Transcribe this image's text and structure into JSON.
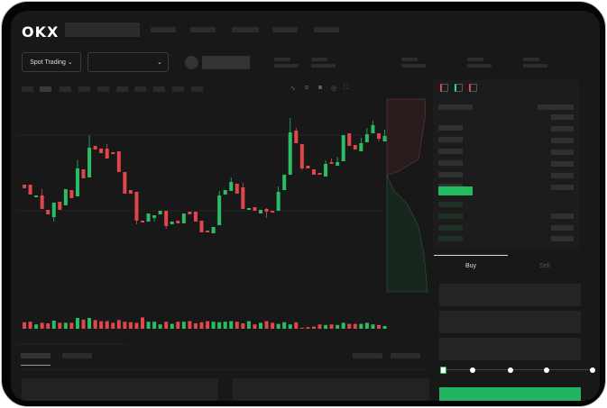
{
  "header": {
    "logo": "OKX"
  },
  "market": {
    "mode_button": "Spot Trading",
    "chevron": "⌄"
  },
  "order_form": {
    "tabs": [
      {
        "label": "Buy",
        "active": true
      },
      {
        "label": "Sell",
        "active": false
      }
    ],
    "slider_percent": 0
  },
  "colors": {
    "up": "#2bbd63",
    "down": "#e0464a",
    "background": "#181818",
    "accent": "#23b25f"
  },
  "toolbar_icons": [
    "indicator-icon",
    "line-chart-icon",
    "ruler-icon",
    "camera-icon",
    "settings-icon",
    "fullscreen-icon"
  ],
  "orderbook_icons": [
    "both-sides-icon",
    "bids-icon",
    "asks-icon"
  ],
  "chart_data": {
    "type": "candlestick",
    "candles": [
      [
        67,
        67,
        63,
        63
      ],
      [
        67,
        67,
        56,
        56
      ],
      [
        53,
        55,
        53,
        55
      ],
      [
        55,
        62,
        40,
        40
      ],
      [
        39,
        39,
        34,
        34
      ],
      [
        31,
        47,
        26,
        47
      ],
      [
        48,
        48,
        39,
        39
      ],
      [
        44,
        62,
        44,
        62
      ],
      [
        61,
        61,
        52,
        52
      ],
      [
        54,
        94,
        54,
        85
      ],
      [
        84,
        84,
        74,
        74
      ],
      [
        75,
        122,
        75,
        108
      ],
      [
        110,
        110,
        106,
        106
      ],
      [
        107,
        107,
        102,
        102
      ],
      [
        107,
        112,
        96,
        96
      ],
      [
        103,
        103,
        101,
        101
      ],
      [
        104,
        104,
        81,
        81
      ],
      [
        81,
        81,
        57,
        57
      ],
      [
        61,
        61,
        57,
        57
      ],
      [
        59,
        59,
        23,
        27
      ],
      [
        27,
        27,
        25,
        25
      ],
      [
        26,
        35,
        26,
        35
      ],
      [
        30,
        33,
        26,
        33
      ],
      [
        34,
        38,
        34,
        38
      ],
      [
        38,
        38,
        18,
        21
      ],
      [
        23,
        26,
        23,
        26
      ],
      [
        27,
        27,
        24,
        24
      ],
      [
        24,
        35,
        24,
        35
      ],
      [
        37,
        37,
        34,
        34
      ],
      [
        37,
        37,
        26,
        26
      ],
      [
        27,
        27,
        14,
        14
      ],
      [
        16,
        16,
        14,
        14
      ],
      [
        13,
        20,
        13,
        20
      ],
      [
        22,
        60,
        22,
        55
      ],
      [
        56,
        61,
        56,
        61
      ],
      [
        60,
        75,
        60,
        70
      ],
      [
        68,
        68,
        57,
        57
      ],
      [
        64,
        69,
        40,
        40
      ],
      [
        39,
        41,
        39,
        41
      ],
      [
        42,
        42,
        38,
        38
      ],
      [
        35,
        39,
        35,
        39
      ],
      [
        40,
        41,
        30,
        37
      ],
      [
        38,
        38,
        36,
        36
      ],
      [
        38,
        65,
        38,
        59
      ],
      [
        61,
        78,
        61,
        78
      ],
      [
        78,
        141,
        78,
        125
      ],
      [
        127,
        130,
        113,
        113
      ],
      [
        112,
        112,
        83,
        85
      ],
      [
        88,
        88,
        85,
        85
      ],
      [
        84,
        84,
        78,
        78
      ],
      [
        80,
        80,
        78,
        78
      ],
      [
        76,
        94,
        76,
        90
      ],
      [
        92,
        96,
        90,
        90
      ],
      [
        88,
        98,
        88,
        92
      ],
      [
        93,
        122,
        93,
        122
      ],
      [
        124,
        124,
        110,
        110
      ],
      [
        111,
        111,
        106,
        106
      ],
      [
        104,
        119,
        104,
        113
      ],
      [
        114,
        130,
        114,
        123
      ],
      [
        124,
        138,
        124,
        133
      ],
      [
        124,
        124,
        115,
        118
      ],
      [
        115,
        128,
        115,
        121
      ]
    ],
    "volume": [
      12,
      13,
      8,
      11,
      10,
      15,
      11,
      11,
      11,
      20,
      17,
      20,
      16,
      14,
      14,
      11,
      16,
      13,
      12,
      11,
      21,
      13,
      13,
      8,
      13,
      9,
      13,
      13,
      14,
      10,
      12,
      14,
      13,
      12,
      13,
      14,
      13,
      10,
      14,
      8,
      11,
      14,
      11,
      9,
      12,
      8,
      12,
      2,
      3,
      4,
      8,
      7,
      8,
      7,
      11,
      9,
      9,
      9,
      11,
      8,
      7,
      5
    ],
    "ylim": [
      0,
      145
    ]
  }
}
